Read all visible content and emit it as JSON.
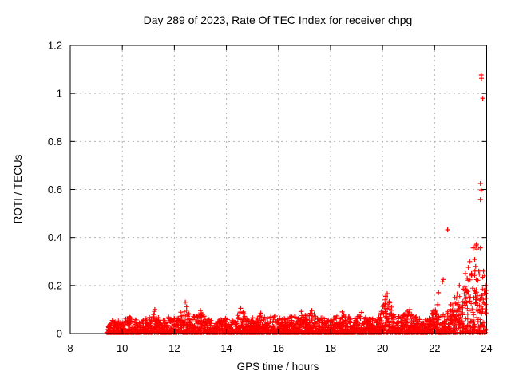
{
  "window": {
    "background_color": "#ffffff"
  },
  "chart_data": {
    "type": "scatter",
    "title": "Day 289 of 2023, Rate Of TEC Index for receiver chpg",
    "xlabel": "GPS time / hours",
    "ylabel": "ROTI / TECUs",
    "xlim": [
      8,
      24
    ],
    "ylim": [
      0,
      1.2
    ],
    "x_ticks": {
      "values": [
        8,
        10,
        12,
        14,
        16,
        18,
        20,
        22,
        24
      ],
      "labels": [
        "8",
        "10",
        "12",
        "14",
        "16",
        "18",
        "20",
        "22",
        "24"
      ]
    },
    "y_ticks": {
      "values": [
        0,
        0.2,
        0.4,
        0.6,
        0.8,
        1.0,
        1.2
      ],
      "labels": [
        "0",
        "0.2",
        "0.4",
        "0.6",
        "0.8",
        "1",
        "1.2"
      ]
    },
    "grid": {
      "visible": true,
      "style": "dotted",
      "color": "#b3b3b3"
    },
    "axis_color": "#000000",
    "legend": "none",
    "marker": {
      "shape": "plus",
      "color": "#ff0000",
      "size": 7
    },
    "data_start_hour": 9.42,
    "data_end_hour": 24,
    "band": {
      "comment": "dense noisy scatter band hugging zero; envelope = [gps_hour, approx max ROTI of dense cluster]",
      "seed": 20231016,
      "step": 0.03,
      "points_per_column": 6,
      "power": 2.0,
      "min_value": 0.004,
      "envelope": [
        [
          9.42,
          0.045
        ],
        [
          9.6,
          0.06
        ],
        [
          9.8,
          0.055
        ],
        [
          10.0,
          0.05
        ],
        [
          10.25,
          0.075
        ],
        [
          10.45,
          0.06
        ],
        [
          10.7,
          0.05
        ],
        [
          10.9,
          0.065
        ],
        [
          11.1,
          0.07
        ],
        [
          11.25,
          0.1
        ],
        [
          11.4,
          0.06
        ],
        [
          11.6,
          0.055
        ],
        [
          11.8,
          0.07
        ],
        [
          12.0,
          0.065
        ],
        [
          12.2,
          0.075
        ],
        [
          12.4,
          0.12
        ],
        [
          12.55,
          0.085
        ],
        [
          12.7,
          0.065
        ],
        [
          12.95,
          0.095
        ],
        [
          13.15,
          0.08
        ],
        [
          13.35,
          0.06
        ],
        [
          13.55,
          0.055
        ],
        [
          13.75,
          0.06
        ],
        [
          13.95,
          0.065
        ],
        [
          14.15,
          0.06
        ],
        [
          14.35,
          0.07
        ],
        [
          14.55,
          0.1
        ],
        [
          14.7,
          0.08
        ],
        [
          14.9,
          0.06
        ],
        [
          15.1,
          0.07
        ],
        [
          15.3,
          0.08
        ],
        [
          15.5,
          0.065
        ],
        [
          15.7,
          0.07
        ],
        [
          15.9,
          0.075
        ],
        [
          16.1,
          0.065
        ],
        [
          16.3,
          0.07
        ],
        [
          16.5,
          0.075
        ],
        [
          16.7,
          0.08
        ],
        [
          16.9,
          0.085
        ],
        [
          17.1,
          0.075
        ],
        [
          17.3,
          0.09
        ],
        [
          17.5,
          0.075
        ],
        [
          17.7,
          0.065
        ],
        [
          17.9,
          0.06
        ],
        [
          18.1,
          0.065
        ],
        [
          18.3,
          0.08
        ],
        [
          18.5,
          0.085
        ],
        [
          18.7,
          0.07
        ],
        [
          18.9,
          0.065
        ],
        [
          19.1,
          0.075
        ],
        [
          19.3,
          0.07
        ],
        [
          19.5,
          0.06
        ],
        [
          19.7,
          0.065
        ],
        [
          19.9,
          0.075
        ],
        [
          20.1,
          0.145
        ],
        [
          20.2,
          0.16
        ],
        [
          20.35,
          0.11
        ],
        [
          20.5,
          0.07
        ],
        [
          20.7,
          0.075
        ],
        [
          20.9,
          0.09
        ],
        [
          21.05,
          0.095
        ],
        [
          21.2,
          0.08
        ],
        [
          21.4,
          0.065
        ],
        [
          21.6,
          0.06
        ],
        [
          21.8,
          0.07
        ],
        [
          22.0,
          0.1
        ],
        [
          22.15,
          0.09
        ],
        [
          22.3,
          0.08
        ],
        [
          22.45,
          0.09
        ],
        [
          22.6,
          0.115
        ],
        [
          22.75,
          0.13
        ],
        [
          22.9,
          0.17
        ],
        [
          23.05,
          0.15
        ],
        [
          23.2,
          0.21
        ],
        [
          23.35,
          0.24
        ],
        [
          23.5,
          0.26
        ],
        [
          23.65,
          0.27
        ],
        [
          23.8,
          0.26
        ],
        [
          23.9,
          0.22
        ],
        [
          24.0,
          0.17
        ]
      ]
    },
    "outliers": [
      [
        11.25,
        0.1
      ],
      [
        12.42,
        0.131
      ],
      [
        12.47,
        0.112
      ],
      [
        13.0,
        0.096
      ],
      [
        14.55,
        0.105
      ],
      [
        14.65,
        0.09
      ],
      [
        15.32,
        0.085
      ],
      [
        16.88,
        0.092
      ],
      [
        17.28,
        0.096
      ],
      [
        18.45,
        0.09
      ],
      [
        19.2,
        0.088
      ],
      [
        20.12,
        0.155
      ],
      [
        20.18,
        0.166
      ],
      [
        20.25,
        0.13
      ],
      [
        20.95,
        0.093
      ],
      [
        21.05,
        0.1
      ],
      [
        22.07,
        0.083
      ],
      [
        22.12,
        0.12
      ],
      [
        22.15,
        0.17
      ],
      [
        22.3,
        0.215
      ],
      [
        22.33,
        0.225
      ],
      [
        22.5,
        0.432
      ],
      [
        22.62,
        0.12
      ],
      [
        22.78,
        0.15
      ],
      [
        22.95,
        0.2
      ],
      [
        23.1,
        0.185
      ],
      [
        23.18,
        0.25
      ],
      [
        23.25,
        0.23
      ],
      [
        23.3,
        0.276
      ],
      [
        23.35,
        0.3
      ],
      [
        23.42,
        0.25
      ],
      [
        23.48,
        0.357
      ],
      [
        23.54,
        0.309
      ],
      [
        23.55,
        0.26
      ],
      [
        23.58,
        0.28
      ],
      [
        23.6,
        0.366
      ],
      [
        23.61,
        0.372
      ],
      [
        23.63,
        0.352
      ],
      [
        23.7,
        0.26
      ],
      [
        23.76,
        0.357
      ],
      [
        23.76,
        0.625
      ],
      [
        23.79,
        0.598
      ],
      [
        23.76,
        0.558
      ],
      [
        23.79,
        1.077
      ],
      [
        23.8,
        1.063
      ],
      [
        23.85,
        0.98
      ],
      [
        23.88,
        0.26
      ],
      [
        23.92,
        0.24
      ],
      [
        23.95,
        0.2
      ],
      [
        23.98,
        0.18
      ]
    ]
  }
}
